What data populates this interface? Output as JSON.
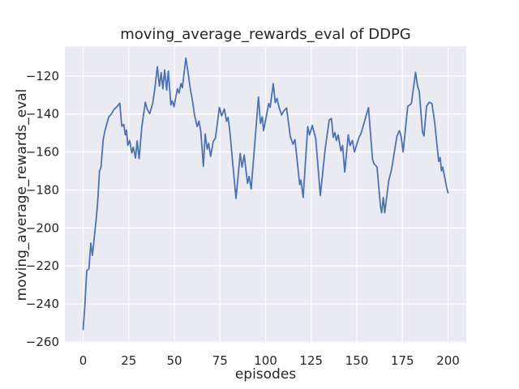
{
  "figure": {
    "background": "#ffffff",
    "axes_background": "#eaeaf2",
    "grid_color": "#ffffff",
    "text_color": "#262626",
    "line_color": "#4c72b0"
  },
  "chart_data": {
    "type": "line",
    "title": "moving_average_rewards_eval of DDPG",
    "xlabel": "episodes",
    "ylabel": "moving_average_rewards_eval",
    "x_ticks": [
      0,
      25,
      50,
      75,
      100,
      125,
      150,
      175,
      200
    ],
    "y_ticks": [
      -120,
      -140,
      -160,
      -180,
      -200,
      -220,
      -240,
      -260
    ],
    "xlim": [
      -10,
      210
    ],
    "ylim": [
      -260.5,
      -104.5
    ],
    "grid": true,
    "legend_position": "none",
    "series": [
      {
        "name": "moving_average_rewards_eval",
        "color": "#4c72b0",
        "x": [
          0,
          1,
          2,
          3.2,
          4.2,
          5.1,
          6,
          7,
          7.9,
          9,
          9.8,
          11,
          11.9,
          13.1,
          14.1,
          15.5,
          17,
          18.5,
          20.1,
          21.2,
          22.3,
          23.1,
          23.8,
          24.5,
          25.5,
          26.7,
          27.5,
          28.7,
          29.6,
          30.7,
          32.2,
          34.1,
          35.1,
          36.5,
          38.1,
          39.2,
          40.7,
          41.8,
          42.8,
          43.7,
          44.7,
          45.8,
          46.7,
          48.1,
          48.9,
          49.8,
          51.7,
          52.6,
          53.6,
          54.4,
          56.3,
          57.4,
          58.8,
          60,
          61,
          62.5,
          63.5,
          64.5,
          65.9,
          66.9,
          68,
          68.8,
          69.9,
          71.3,
          72.5,
          74.7,
          75.9,
          77.4,
          78.6,
          79.4,
          80.4,
          82,
          83.8,
          86.1,
          87.1,
          88.3,
          90.1,
          91,
          92.1,
          96.1,
          97.2,
          98.2,
          98.9,
          101.7,
          102.5,
          104.2,
          105.3,
          106.3,
          107.5,
          108.8,
          109.9,
          111.5,
          113.5,
          115,
          116.1,
          118.7,
          119.4,
          120.6,
          123.1,
          124.1,
          125.6,
          127.5,
          130,
          132.7,
          134.9,
          136.1,
          137.1,
          138,
          138.8,
          139.8,
          141.3,
          142.2,
          143.4,
          145.3,
          146.3,
          147.6,
          148.7,
          151.2,
          152.3,
          156.4,
          158.6,
          159.3,
          161.1,
          163,
          163.6,
          164.5,
          165.3,
          167.5,
          169,
          172,
          173.4,
          174.3,
          175.4,
          176.8,
          177.9,
          179.9,
          181.2,
          182.2,
          183.3,
          184.2,
          186,
          186.8,
          188.2,
          189.7,
          191.2,
          192.7,
          194.2,
          194.9,
          195.7,
          196.4,
          197.1,
          199.3,
          200
        ],
        "y": [
          -253.5,
          -240,
          -222.5,
          -221.5,
          -208,
          -214.5,
          -206,
          -197,
          -187.5,
          -170,
          -168,
          -153.5,
          -149,
          -144.8,
          -141.5,
          -140,
          -137.5,
          -136.2,
          -134.3,
          -146.5,
          -145.5,
          -151,
          -148.5,
          -156.5,
          -154,
          -160.5,
          -157.5,
          -163.2,
          -154.2,
          -163.5,
          -146.5,
          -133.8,
          -137.4,
          -139.8,
          -134.5,
          -127.5,
          -115.1,
          -125.3,
          -118.2,
          -126.7,
          -116.8,
          -127.4,
          -117.4,
          -135.2,
          -133.1,
          -136.2,
          -126.7,
          -129,
          -124,
          -126.2,
          -110.5,
          -117.5,
          -127,
          -133.5,
          -140.2,
          -146.6,
          -143.8,
          -149.3,
          -167.5,
          -150.5,
          -158.5,
          -155.5,
          -162.3,
          -154.5,
          -152.8,
          -136.5,
          -141,
          -137.4,
          -143.8,
          -141.8,
          -148.8,
          -166,
          -184.5,
          -160.8,
          -168,
          -161.6,
          -176.5,
          -172.9,
          -179.5,
          -131,
          -145,
          -141.5,
          -148.8,
          -134.5,
          -136.5,
          -124,
          -134,
          -131.8,
          -137,
          -140.5,
          -138.5,
          -136.8,
          -151.6,
          -155.9,
          -153.5,
          -177.2,
          -174.8,
          -184,
          -146.6,
          -151,
          -146,
          -153,
          -183,
          -158,
          -143.1,
          -142.4,
          -152.3,
          -149.8,
          -154,
          -151,
          -159.5,
          -156.5,
          -170.5,
          -151,
          -156.6,
          -154,
          -160,
          -152.3,
          -150.3,
          -136.6,
          -163.7,
          -166,
          -168,
          -189,
          -192,
          -184,
          -192,
          -175,
          -169.5,
          -151.6,
          -148.8,
          -152,
          -160,
          -146.6,
          -136,
          -134.5,
          -125.3,
          -118,
          -125.3,
          -128,
          -149.5,
          -151.5,
          -136,
          -133.8,
          -134.5,
          -144.5,
          -158.7,
          -165,
          -163,
          -170,
          -168,
          -179,
          -181.5
        ]
      }
    ]
  }
}
